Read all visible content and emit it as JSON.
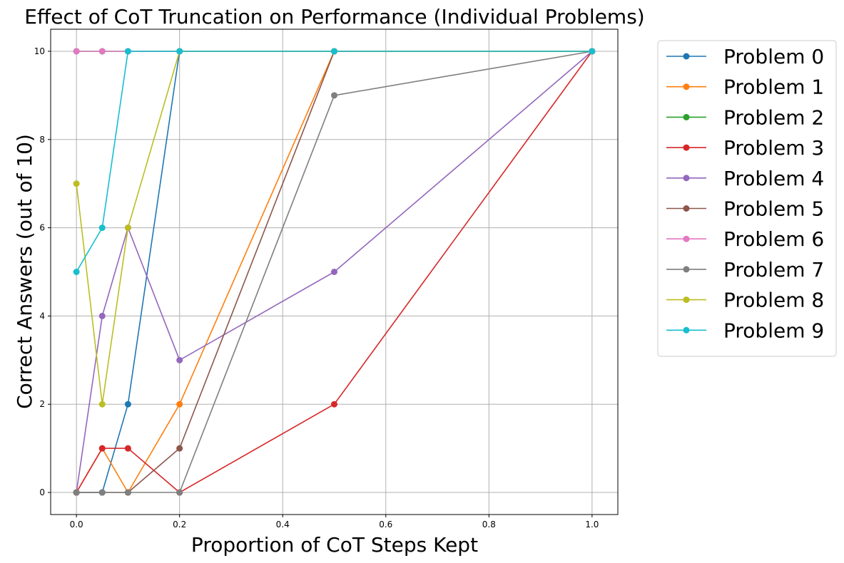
{
  "chart_data": {
    "type": "line",
    "title": "Effect of CoT Truncation on Performance (Individual Problems)",
    "xlabel": "Proportion of CoT Steps Kept",
    "ylabel": "Correct Answers (out of 10)",
    "xlim": [
      -0.05,
      1.05
    ],
    "ylim": [
      -0.5,
      10.5
    ],
    "xticks": [
      "0.0",
      "0.2",
      "0.4",
      "0.6",
      "0.8",
      "1.0"
    ],
    "yticks": [
      "0",
      "2",
      "4",
      "6",
      "8",
      "10"
    ],
    "grid": true,
    "legend_position": "outside-right",
    "x": [
      0.0,
      0.05,
      0.1,
      0.2,
      0.5,
      1.0
    ],
    "series": [
      {
        "name": "Problem 0",
        "color": "#1f77b4",
        "values": [
          0,
          0,
          2,
          10,
          10,
          10
        ]
      },
      {
        "name": "Problem 1",
        "color": "#ff7f0e",
        "values": [
          0,
          1,
          0,
          2,
          10,
          10
        ]
      },
      {
        "name": "Problem 2",
        "color": "#2ca02c",
        "values": [
          10,
          10,
          10,
          10,
          10,
          10
        ]
      },
      {
        "name": "Problem 3",
        "color": "#d62728",
        "values": [
          0,
          1,
          1,
          0,
          2,
          10
        ]
      },
      {
        "name": "Problem 4",
        "color": "#9467bd",
        "values": [
          0,
          4,
          6,
          3,
          5,
          10
        ]
      },
      {
        "name": "Problem 5",
        "color": "#8c564b",
        "values": [
          0,
          0,
          0,
          1,
          10,
          10
        ]
      },
      {
        "name": "Problem 6",
        "color": "#e377c2",
        "values": [
          10,
          10,
          10,
          10,
          10,
          10
        ]
      },
      {
        "name": "Problem 7",
        "color": "#7f7f7f",
        "values": [
          0,
          0,
          0,
          0,
          9,
          10
        ]
      },
      {
        "name": "Problem 8",
        "color": "#bcbd22",
        "values": [
          7,
          2,
          6,
          10,
          10,
          10
        ]
      },
      {
        "name": "Problem 9",
        "color": "#17becf",
        "values": [
          5,
          6,
          10,
          10,
          10,
          10
        ]
      }
    ]
  }
}
